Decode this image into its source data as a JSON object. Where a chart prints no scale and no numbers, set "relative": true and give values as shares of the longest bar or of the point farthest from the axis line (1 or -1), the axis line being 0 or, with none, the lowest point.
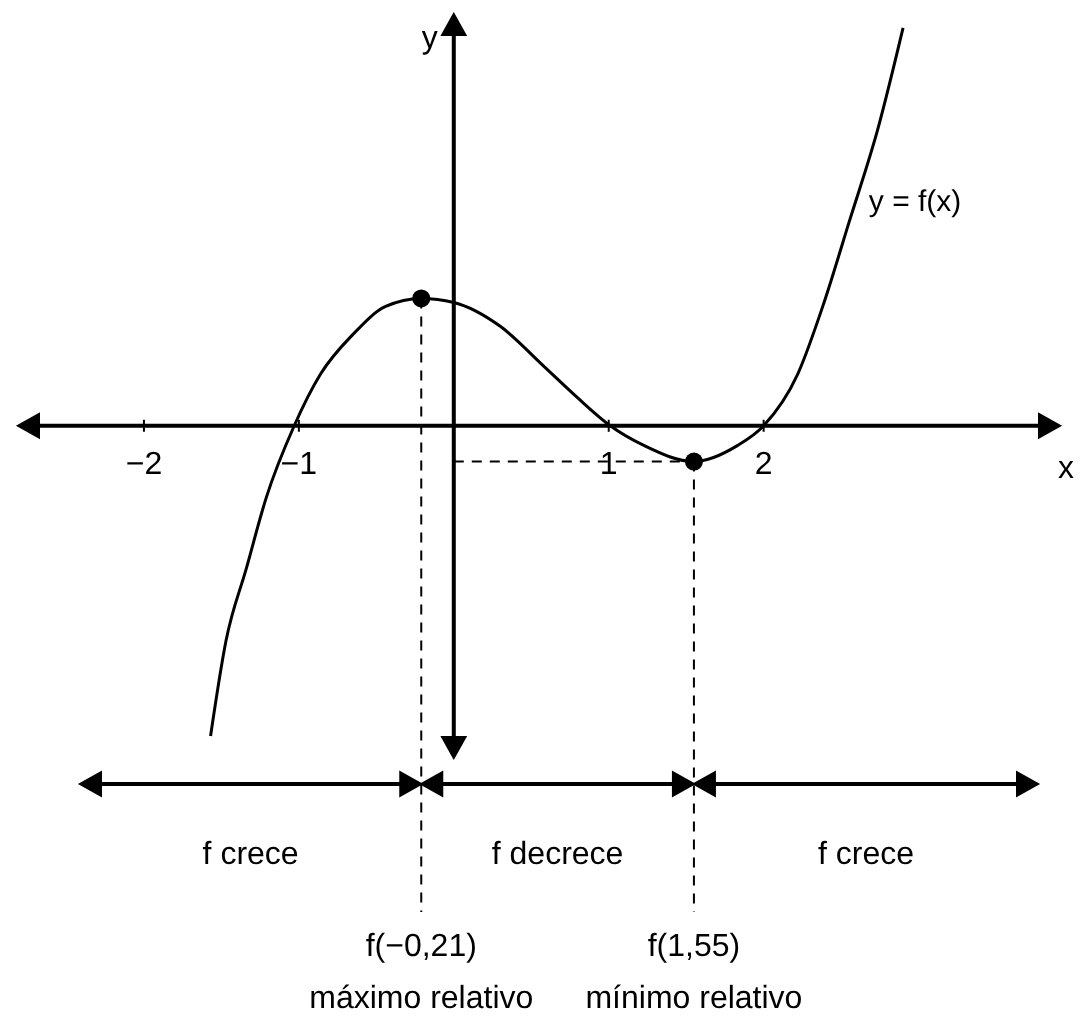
{
  "chart_data": {
    "type": "line",
    "relative": true,
    "xlabel": "x",
    "ylabel": "y",
    "xlim": [
      -2.8,
      3.9
    ],
    "xticks": [
      {
        "value": -2,
        "label": "−2"
      },
      {
        "value": -1,
        "label": "−1"
      },
      {
        "value": 1,
        "label": "1"
      },
      {
        "value": 2,
        "label": "2"
      }
    ],
    "series": [
      {
        "name": "y = f(x)",
        "color": "#000000",
        "marker": "none",
        "x": [
          -1.57,
          -1.47,
          -1.34,
          -1.21,
          -1.03,
          -0.86,
          -0.65,
          -0.44,
          -0.21,
          0,
          0.3,
          0.58,
          0.8,
          1.01,
          1.23,
          1.55,
          1.83,
          2.0,
          2.22,
          2.39,
          2.55,
          2.74,
          2.9
        ],
        "values": [
          -0.78,
          -0.54,
          -0.36,
          -0.18,
          0,
          0.13,
          0.23,
          0.3,
          0.32,
          0.31,
          0.25,
          0.15,
          0.07,
          0,
          -0.05,
          -0.09,
          -0.05,
          0,
          0.13,
          0.31,
          0.51,
          0.75,
          1
        ]
      },
      {
        "type": "scatter",
        "color": "#000000",
        "marker": "circle",
        "x": [
          -0.21,
          1.55
        ],
        "values": [
          0.32,
          -0.09
        ]
      }
    ],
    "ref_lines": [
      {
        "axis": "x",
        "value": -0.21,
        "label": "f(−0,21)\nmáximo relativo",
        "color": "#000000",
        "line_style": "dashed"
      },
      {
        "axis": "x",
        "value": 1.55,
        "label": "f(1,55)\nmínimo relativo",
        "color": "#000000",
        "line_style": "dashed"
      },
      {
        "axis": "y",
        "value": -0.09,
        "color": "#000000",
        "line_style": "dashed"
      }
    ],
    "annotations": [
      "f crece",
      "f decrece",
      "f crece"
    ]
  }
}
